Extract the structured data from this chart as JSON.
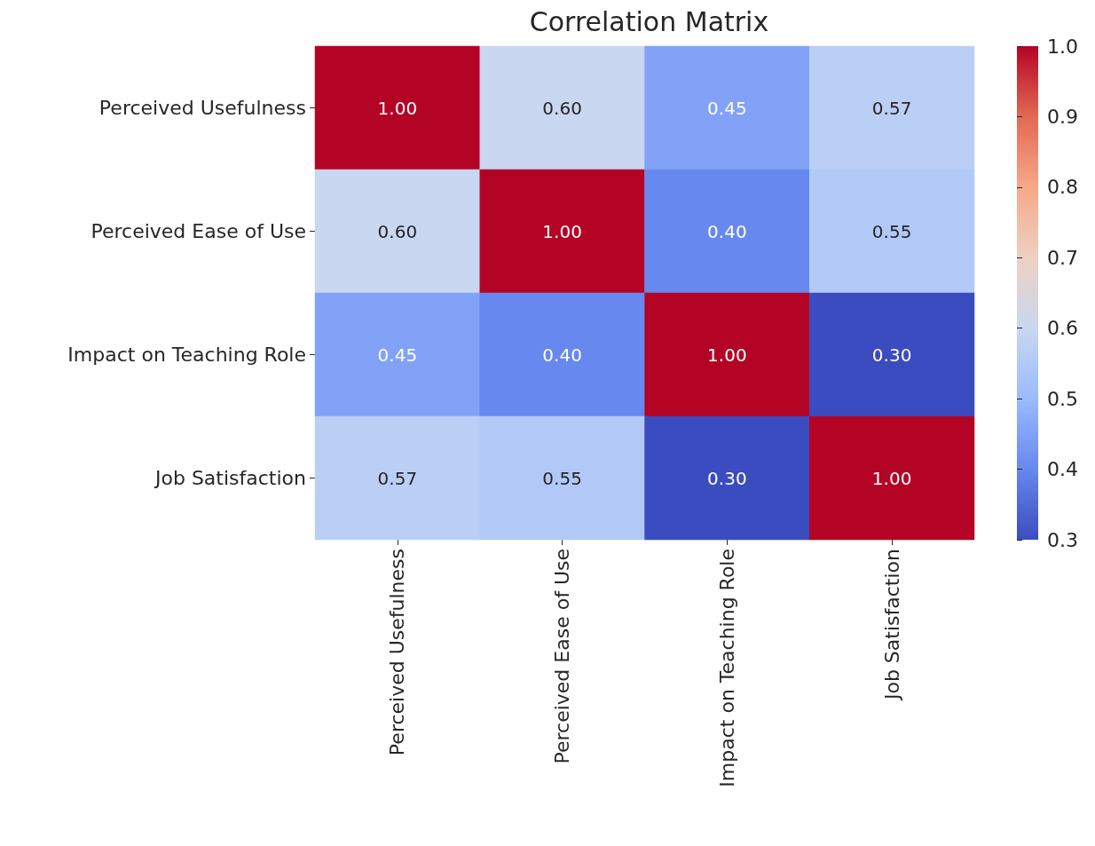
{
  "chart_data": {
    "type": "heatmap",
    "title": "Correlation Matrix",
    "categories": [
      "Perceived Usefulness",
      "Perceived Ease of Use",
      "Impact on Teaching Role",
      "Job Satisfaction"
    ],
    "y_categories": [
      "Perceived Usefulness",
      "Perceived Ease of Use",
      "Impact on Teaching Role",
      "Job Satisfaction"
    ],
    "cells": [
      [
        1.0,
        0.6,
        0.45,
        0.57
      ],
      [
        0.6,
        1.0,
        0.4,
        0.55
      ],
      [
        0.45,
        0.4,
        1.0,
        0.3
      ],
      [
        0.57,
        0.55,
        0.3,
        1.0
      ]
    ],
    "cell_labels": [
      [
        "1.00",
        "0.60",
        "0.45",
        "0.57"
      ],
      [
        "0.60",
        "1.00",
        "0.40",
        "0.55"
      ],
      [
        "0.45",
        "0.40",
        "1.00",
        "0.30"
      ],
      [
        "0.57",
        "0.55",
        "0.30",
        "1.00"
      ]
    ],
    "clim": [
      0.3,
      1.0
    ],
    "cticks": [
      0.3,
      0.4,
      0.5,
      0.6,
      0.7,
      0.8,
      0.9,
      {
        "value": 1.0,
        "label": "1.0"
      }
    ]
  }
}
